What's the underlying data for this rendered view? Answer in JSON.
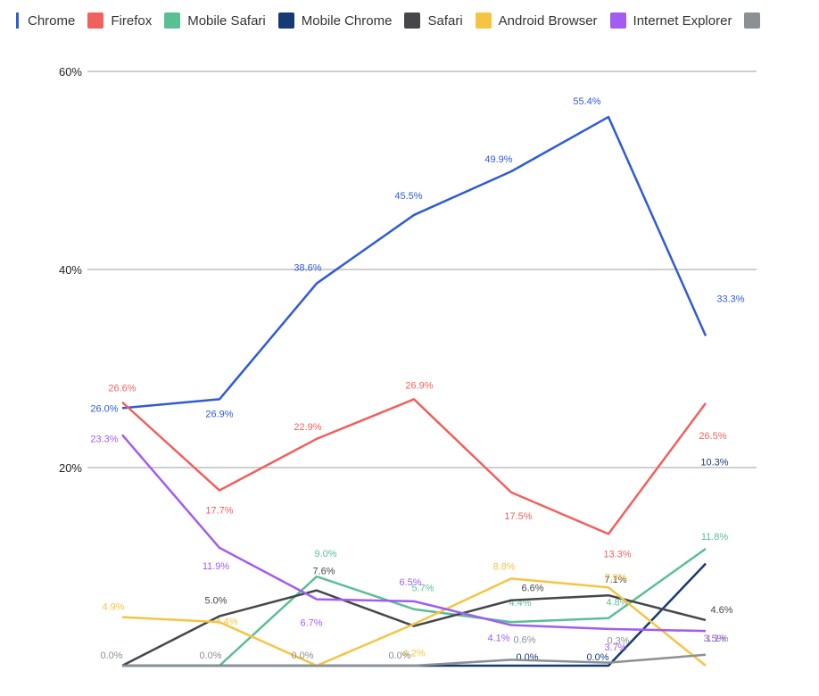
{
  "chart_data": {
    "type": "line",
    "ylim": [
      0,
      60
    ],
    "yticks": [
      "20%",
      "40%",
      "60%"
    ],
    "ytick_values": [
      20,
      40,
      60
    ],
    "grid": true,
    "legend": "top",
    "x": [
      0,
      1,
      2,
      3,
      4,
      5,
      6
    ],
    "series": [
      {
        "name": "Chrome",
        "color": "#2f5bd6",
        "values": [
          26.0,
          26.9,
          38.6,
          45.5,
          49.9,
          55.4,
          33.3
        ],
        "labels": [
          "26.0%",
          "26.9%",
          "38.6%",
          "45.5%",
          "49.9%",
          "55.4%",
          "33.3%"
        ]
      },
      {
        "name": "Firefox",
        "color": "#f0605d",
        "values": [
          26.6,
          17.7,
          22.9,
          26.9,
          17.5,
          13.3,
          26.5
        ],
        "labels": [
          "26.6%",
          "17.7%",
          "22.9%",
          "26.9%",
          "17.5%",
          "13.3%",
          "26.5%"
        ]
      },
      {
        "name": "Mobile Safari",
        "color": "#5bbf94",
        "values": [
          0.0,
          0.0,
          9.0,
          5.7,
          4.4,
          4.8,
          11.8
        ],
        "labels": [
          "",
          "",
          "9.0%",
          "5.7%",
          "4.4%",
          "4.8%",
          "11.8%"
        ]
      },
      {
        "name": "Mobile Chrome",
        "color": "#173a73",
        "values": [
          0.0,
          0.0,
          0.0,
          0.0,
          0.0,
          0.0,
          10.3
        ],
        "labels": [
          "",
          "",
          "",
          "",
          "0.0%",
          "0.0%",
          "10.3%"
        ]
      },
      {
        "name": "Safari",
        "color": "#45474b",
        "values": [
          0.0,
          5.0,
          7.6,
          4.0,
          6.6,
          7.1,
          4.6
        ],
        "labels": [
          "",
          "5.0%",
          "7.6%",
          "",
          "6.6%",
          "7.1%",
          "4.6%"
        ]
      },
      {
        "name": "Android Browser",
        "color": "#f6c443",
        "values": [
          4.9,
          4.4,
          0.0,
          4.2,
          8.8,
          7.9,
          0.0
        ],
        "labels": [
          "4.9%",
          "4.4%",
          "",
          "4.2%",
          "8.8%",
          "7.9%",
          ""
        ]
      },
      {
        "name": "Internet Explorer",
        "color": "#a25cf0",
        "values": [
          23.3,
          11.9,
          6.7,
          6.5,
          4.1,
          3.7,
          3.5
        ],
        "labels": [
          "23.3%",
          "11.9%",
          "6.7%",
          "6.5%",
          "4.1%",
          "3.7%",
          "3.5%"
        ]
      },
      {
        "name": "",
        "color": "#8a9094",
        "values": [
          0.0,
          0.0,
          0.0,
          0.0,
          0.6,
          0.3,
          1.1
        ],
        "labels": [
          "0.0%",
          "0.0%",
          "0.0%",
          "0.0%",
          "0.6%",
          "0.3%",
          "1.1%"
        ]
      }
    ]
  }
}
